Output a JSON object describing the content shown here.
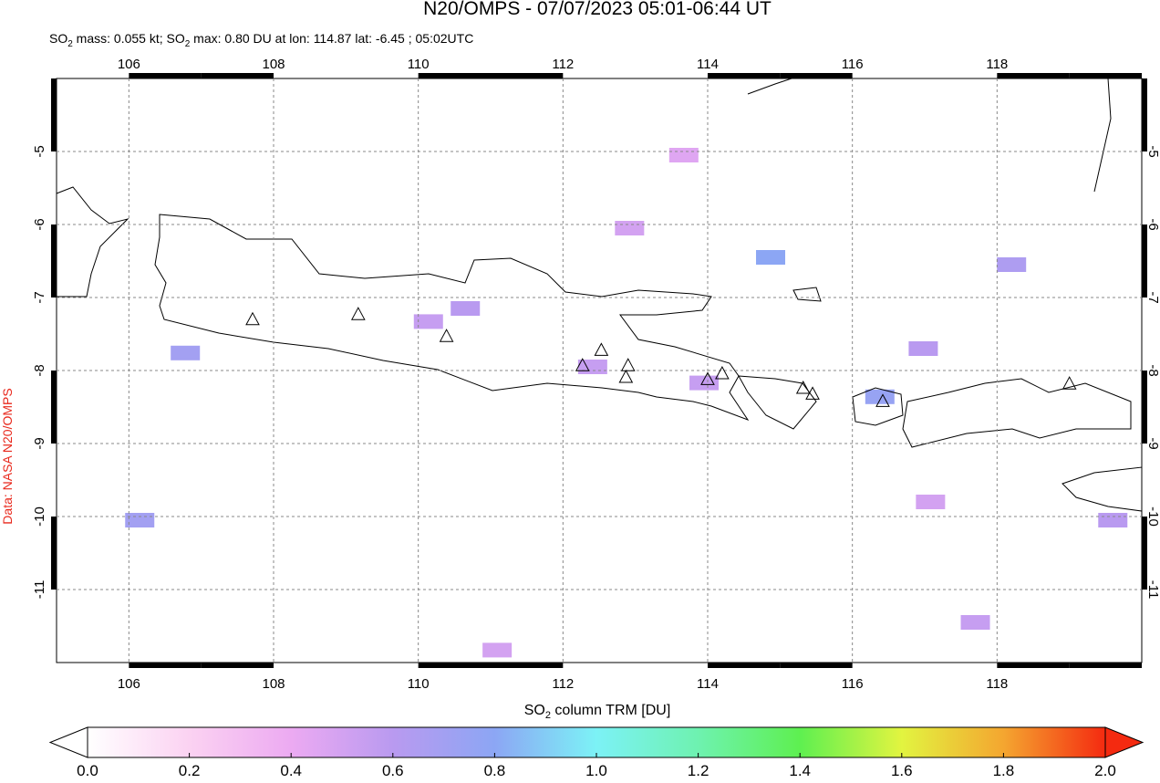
{
  "title": "N20/OMPS - 07/07/2023 05:01-06:44 UT",
  "subtitle": [
    "SO",
    "2",
    " mass: 0.055 kt; SO",
    "2",
    " max: 0.80 DU at lon: 114.87 lat: -6.45 ; 05:02UTC"
  ],
  "credit": "Data: NASA N20/OMPS",
  "map": {
    "xlim": [
      105,
      120
    ],
    "ylim": [
      -4,
      -12
    ],
    "xticks": [
      106,
      108,
      110,
      112,
      114,
      116,
      118
    ],
    "yticks": [
      -5,
      -6,
      -7,
      -8,
      -9,
      -10,
      -11
    ],
    "grid": true,
    "cells": [
      {
        "lon": 114.87,
        "lat": -6.45,
        "value": 0.8
      },
      {
        "lon": 106.78,
        "lat": -7.76,
        "value": 0.7
      },
      {
        "lon": 106.15,
        "lat": -10.05,
        "value": 0.7
      },
      {
        "lon": 116.38,
        "lat": -8.36,
        "value": 0.75
      },
      {
        "lon": 118.2,
        "lat": -6.55,
        "value": 0.65
      },
      {
        "lon": 116.98,
        "lat": -7.7,
        "value": 0.6
      },
      {
        "lon": 119.6,
        "lat": -10.05,
        "value": 0.6
      },
      {
        "lon": 117.7,
        "lat": -11.45,
        "value": 0.55
      },
      {
        "lon": 111.09,
        "lat": -11.83,
        "value": 0.5
      },
      {
        "lon": 113.95,
        "lat": -8.17,
        "value": 0.55
      },
      {
        "lon": 110.14,
        "lat": -7.33,
        "value": 0.55
      },
      {
        "lon": 110.65,
        "lat": -7.15,
        "value": 0.6
      },
      {
        "lon": 112.41,
        "lat": -7.95,
        "value": 0.55
      },
      {
        "lon": 117.08,
        "lat": -9.8,
        "value": 0.5
      },
      {
        "lon": 112.92,
        "lat": -6.05,
        "value": 0.5
      },
      {
        "lon": 113.67,
        "lat": -5.05,
        "value": 0.45
      }
    ],
    "volcanoes": [
      {
        "lon": 107.71,
        "lat": -7.31
      },
      {
        "lon": 109.17,
        "lat": -7.24
      },
      {
        "lon": 110.39,
        "lat": -7.54
      },
      {
        "lon": 112.27,
        "lat": -7.94
      },
      {
        "lon": 112.53,
        "lat": -7.73
      },
      {
        "lon": 112.9,
        "lat": -7.94
      },
      {
        "lon": 112.87,
        "lat": -8.1
      },
      {
        "lon": 114.0,
        "lat": -8.13
      },
      {
        "lon": 114.2,
        "lat": -8.05
      },
      {
        "lon": 115.32,
        "lat": -8.25
      },
      {
        "lon": 115.45,
        "lat": -8.33
      },
      {
        "lon": 116.42,
        "lat": -8.43
      },
      {
        "lon": 119.0,
        "lat": -8.19
      }
    ]
  },
  "colorbar": {
    "label": [
      "SO",
      "2",
      " column TRM [DU]"
    ],
    "lim": [
      0,
      2
    ],
    "ticks": [
      {
        "value": 0,
        "label": "0.0"
      },
      {
        "value": 0.2,
        "label": "0.2"
      },
      {
        "value": 0.4,
        "label": "0.4"
      },
      {
        "value": 0.6,
        "label": "0.6"
      },
      {
        "value": 0.8,
        "label": "0.8"
      },
      {
        "value": 1,
        "label": "1.0"
      },
      {
        "value": 1.2,
        "label": "1.2"
      },
      {
        "value": 1.4,
        "label": "1.4"
      },
      {
        "value": 1.6,
        "label": "1.6"
      },
      {
        "value": 1.8,
        "label": "1.8"
      },
      {
        "value": 2,
        "label": "2.0"
      }
    ],
    "colors": [
      "#ffffff",
      "#fbd2f2",
      "#ecaaf2",
      "#b99af0",
      "#8ca6f4",
      "#7cf2f6",
      "#6ef2b0",
      "#5ef050",
      "#e2f440",
      "#f4a630",
      "#f42a10"
    ]
  }
}
